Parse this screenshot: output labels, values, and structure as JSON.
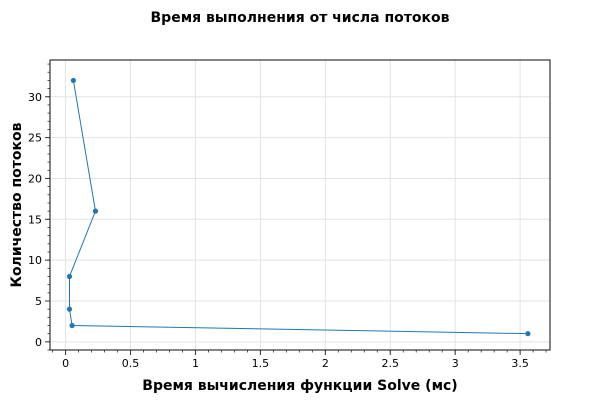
{
  "chart_data": {
    "type": "line",
    "title": "Время выполнения от числа потоков",
    "xlabel": "Время вычисления функции Solve (мс)",
    "ylabel": "Количество потоков",
    "xlim": [
      -0.12,
      3.73
    ],
    "ylim": [
      -1,
      34.5
    ],
    "xticks": [
      0,
      0.5,
      1,
      1.5,
      2,
      2.5,
      3,
      3.5
    ],
    "xtick_labels": [
      "0",
      "0.5",
      "1",
      "1.5",
      "2",
      "2.5",
      "3",
      "3.5"
    ],
    "yticks": [
      0,
      5,
      10,
      15,
      20,
      25,
      30
    ],
    "ytick_labels": [
      "0",
      "5",
      "10",
      "15",
      "20",
      "25",
      "30"
    ],
    "grid": true,
    "series": [
      {
        "color": "#1f77b4",
        "points": [
          {
            "x": 3.56,
            "y": 1
          },
          {
            "x": 0.05,
            "y": 2
          },
          {
            "x": 0.03,
            "y": 4
          },
          {
            "x": 0.03,
            "y": 8
          },
          {
            "x": 0.23,
            "y": 16
          },
          {
            "x": 0.06,
            "y": 32
          }
        ]
      }
    ]
  }
}
